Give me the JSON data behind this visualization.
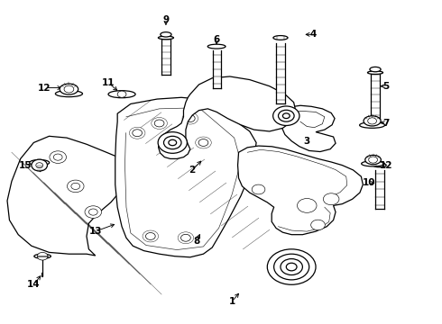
{
  "bg_color": "#ffffff",
  "fig_width": 4.9,
  "fig_height": 3.6,
  "dpi": 100,
  "label_positions": {
    "1": [
      0.525,
      0.068,
      0.545,
      0.1
    ],
    "2": [
      0.435,
      0.475,
      0.46,
      0.51
    ],
    "3": [
      0.695,
      0.565,
      0.675,
      0.565
    ],
    "4": [
      0.71,
      0.895,
      0.685,
      0.895
    ],
    "5": [
      0.875,
      0.735,
      0.855,
      0.735
    ],
    "6": [
      0.49,
      0.878,
      0.49,
      0.855
    ],
    "7": [
      0.875,
      0.62,
      0.855,
      0.625
    ],
    "8": [
      0.445,
      0.255,
      0.455,
      0.285
    ],
    "9": [
      0.375,
      0.94,
      0.375,
      0.915
    ],
    "10": [
      0.835,
      0.435,
      0.855,
      0.435
    ],
    "11": [
      0.245,
      0.745,
      0.27,
      0.715
    ],
    "12a": [
      0.1,
      0.73,
      0.145,
      0.73
    ],
    "12b": [
      0.875,
      0.49,
      0.845,
      0.505
    ],
    "13": [
      0.215,
      0.285,
      0.265,
      0.31
    ],
    "14": [
      0.075,
      0.12,
      0.095,
      0.155
    ],
    "15": [
      0.055,
      0.49,
      0.085,
      0.5
    ]
  }
}
